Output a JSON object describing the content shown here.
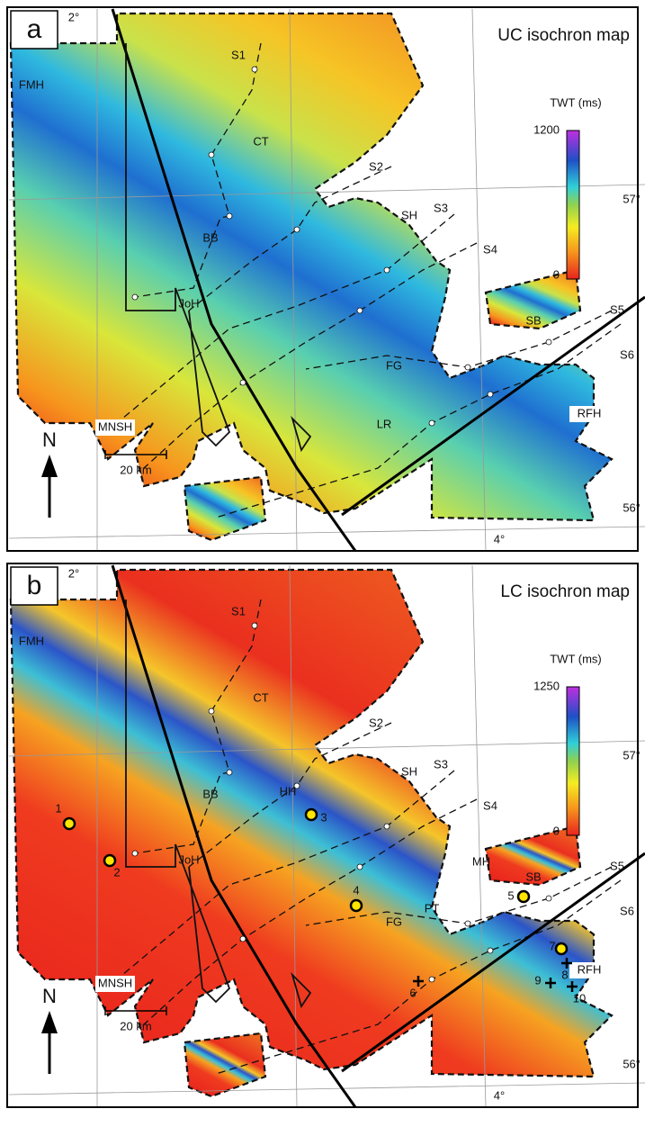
{
  "panels": [
    {
      "letter": "a",
      "title": "UC isochron map",
      "colorbar": {
        "label": "TWT (ms)",
        "max": "1200",
        "min": "0"
      },
      "graticule": {
        "lon": [
          "2°",
          "4°"
        ],
        "lat": [
          "57°",
          "56°"
        ]
      },
      "north": "N",
      "scale": "20 km",
      "profiles": [
        "S1",
        "S2",
        "S3",
        "S4",
        "S5",
        "S6"
      ],
      "areas": [
        "FMH",
        "CT",
        "SH",
        "BB",
        "JoH",
        "SB",
        "FG",
        "MNSH",
        "RFH",
        "LR"
      ]
    },
    {
      "letter": "b",
      "title": "LC isochron map",
      "colorbar": {
        "label": "TWT (ms)",
        "max": "1250",
        "min": "0"
      },
      "graticule": {
        "lon": [
          "2°",
          "4°"
        ],
        "lat": [
          "57°",
          "56°"
        ]
      },
      "north": "N",
      "scale": "20 km",
      "profiles": [
        "S1",
        "S2",
        "S3",
        "S4",
        "S5",
        "S6"
      ],
      "areas": [
        "FMH",
        "CT",
        "SH",
        "BB",
        "HH",
        "JoH",
        "MH",
        "SB",
        "PT",
        "FG",
        "MNSH",
        "RFH"
      ],
      "wells": [
        "1",
        "2",
        "3",
        "4",
        "5",
        "6",
        "7",
        "8",
        "9",
        "10"
      ]
    }
  ]
}
